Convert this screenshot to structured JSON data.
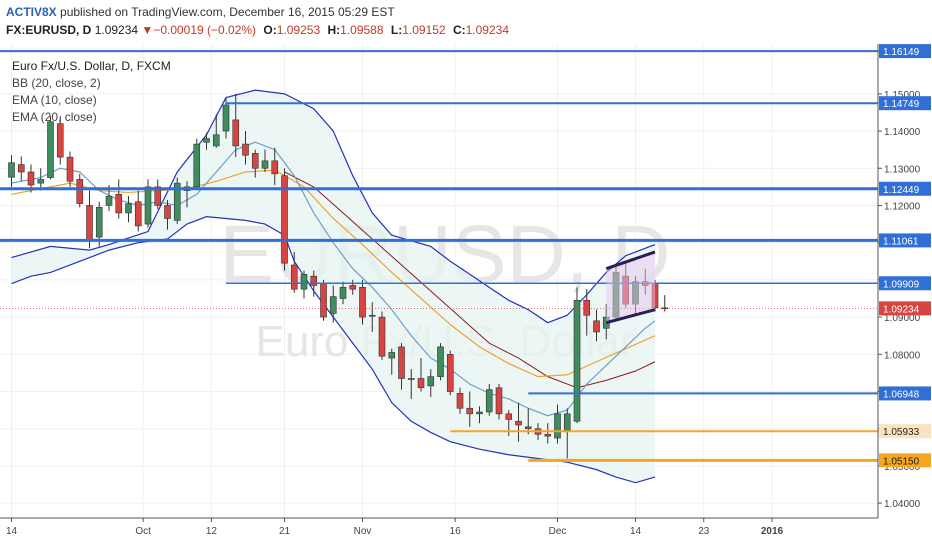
{
  "header": {
    "user": "ACTIV8X",
    "published": "published on TradingView.com, December 16, 2015 05:29 EST",
    "symbol": "FX:EURUSD, D",
    "last": "1.09234",
    "change": "−0.00019 (−0.02%)",
    "o_label": "O:",
    "o": "1.09253",
    "h_label": "H:",
    "h": "1.09588",
    "l_label": "L:",
    "l": "1.09152",
    "c_label": "C:",
    "c": "1.09234"
  },
  "legend": {
    "title": "Euro Fx/U.S. Dollar, D, FXCM",
    "bb": "BB (20, close, 2)",
    "ema10": "EMA (10, close)",
    "ema20": "EMA (20, close)"
  },
  "watermark": {
    "symbol": "EURUSD, D",
    "name": "Euro Fx/U.S. Dollar"
  },
  "colors": {
    "up": "#3f8d5e",
    "down": "#d64541",
    "bb": "#2233bb",
    "bb_fill": "#e6f4f1",
    "ema10": "#6f9fc9",
    "ema20": "#f0a030",
    "ema_slow": "#8b1a1a",
    "hline": "#2f6fd6",
    "support": "#f5a623",
    "channel": "#2a1f55"
  },
  "chart_data": {
    "type": "candlestick",
    "ylim": [
      1.036,
      1.1634
    ],
    "yticks": [
      "1.16149",
      "1.15000",
      "1.14000",
      "1.13000",
      "1.12000",
      "1.11000",
      "1.10000",
      "1.09000",
      "1.08000",
      "1.07000",
      "1.06000",
      "1.05000",
      "1.04000"
    ],
    "xticks": [
      "14",
      "Oct",
      "12",
      "21",
      "Nov",
      "16",
      "Dec",
      "14",
      "23",
      "2016"
    ],
    "candles": [
      [
        1.1276,
        1.1335,
        1.125,
        1.1315
      ],
      [
        1.131,
        1.1332,
        1.1265,
        1.129
      ],
      [
        1.129,
        1.131,
        1.1235,
        1.1255
      ],
      [
        1.126,
        1.13,
        1.124,
        1.127
      ],
      [
        1.1275,
        1.144,
        1.127,
        1.1425
      ],
      [
        1.142,
        1.144,
        1.131,
        1.133
      ],
      [
        1.133,
        1.1345,
        1.125,
        1.1265
      ],
      [
        1.127,
        1.1285,
        1.1195,
        1.1205
      ],
      [
        1.12,
        1.124,
        1.1085,
        1.1105
      ],
      [
        1.1115,
        1.121,
        1.109,
        1.1195
      ],
      [
        1.12,
        1.1255,
        1.1185,
        1.1225
      ],
      [
        1.123,
        1.127,
        1.1165,
        1.118
      ],
      [
        1.118,
        1.1225,
        1.1155,
        1.1205
      ],
      [
        1.121,
        1.124,
        1.113,
        1.1145
      ],
      [
        1.115,
        1.127,
        1.114,
        1.125
      ],
      [
        1.125,
        1.127,
        1.119,
        1.12
      ],
      [
        1.12,
        1.1215,
        1.1135,
        1.1165
      ],
      [
        1.116,
        1.1275,
        1.115,
        1.126
      ],
      [
        1.124,
        1.1265,
        1.1195,
        1.125
      ],
      [
        1.125,
        1.138,
        1.1245,
        1.1365
      ],
      [
        1.137,
        1.1395,
        1.135,
        1.138
      ],
      [
        1.136,
        1.1445,
        1.1355,
        1.139
      ],
      [
        1.14,
        1.149,
        1.138,
        1.147
      ],
      [
        1.143,
        1.15,
        1.133,
        1.136
      ],
      [
        1.1365,
        1.14,
        1.131,
        1.1335
      ],
      [
        1.134,
        1.135,
        1.1275,
        1.13
      ],
      [
        1.13,
        1.135,
        1.129,
        1.132
      ],
      [
        1.132,
        1.1355,
        1.1255,
        1.1285
      ],
      [
        1.128,
        1.13,
        1.1025,
        1.1045
      ],
      [
        1.104,
        1.1075,
        1.0965,
        1.0975
      ],
      [
        1.0975,
        1.1025,
        1.095,
        1.1015
      ],
      [
        1.101,
        1.1025,
        1.0955,
        1.0985
      ],
      [
        1.099,
        1.1,
        1.089,
        1.09
      ],
      [
        1.091,
        1.0985,
        1.0885,
        1.0955
      ],
      [
        1.095,
        1.0995,
        1.0935,
        1.098
      ],
      [
        1.0985,
        1.1,
        1.096,
        1.0975
      ],
      [
        1.098,
        1.1,
        1.088,
        1.09
      ],
      [
        1.0905,
        1.094,
        1.086,
        1.0905
      ],
      [
        1.09,
        1.0915,
        1.0785,
        1.0795
      ],
      [
        1.079,
        1.0815,
        1.0745,
        1.0805
      ],
      [
        1.082,
        1.083,
        1.0705,
        1.0735
      ],
      [
        1.0735,
        1.076,
        1.068,
        1.0735
      ],
      [
        1.0735,
        1.079,
        1.07,
        1.071
      ],
      [
        1.0715,
        1.076,
        1.0685,
        1.074
      ],
      [
        1.074,
        1.083,
        1.073,
        1.082
      ],
      [
        1.08,
        1.081,
        1.069,
        1.07
      ],
      [
        1.0695,
        1.071,
        1.064,
        1.0655
      ],
      [
        1.0655,
        1.07,
        1.0605,
        1.064
      ],
      [
        1.064,
        1.066,
        1.0615,
        1.0645
      ],
      [
        1.0645,
        1.072,
        1.0635,
        1.0705
      ],
      [
        1.071,
        1.072,
        1.0625,
        1.064
      ],
      [
        1.064,
        1.065,
        1.058,
        1.0625
      ],
      [
        1.062,
        1.067,
        1.0565,
        1.061
      ],
      [
        1.0605,
        1.0655,
        1.0585,
        1.06
      ],
      [
        1.06,
        1.0615,
        1.057,
        1.0585
      ],
      [
        1.0585,
        1.0615,
        1.056,
        1.058
      ],
      [
        1.0575,
        1.0665,
        1.056,
        1.064
      ],
      [
        1.0595,
        1.0655,
        1.052,
        1.064
      ],
      [
        1.062,
        1.098,
        1.0615,
        1.0945
      ],
      [
        1.0945,
        1.0975,
        1.085,
        1.0905
      ],
      [
        1.089,
        1.092,
        1.0835,
        1.086
      ],
      [
        1.087,
        1.0935,
        1.084,
        1.09
      ],
      [
        1.09,
        1.104,
        1.0895,
        1.102
      ],
      [
        1.101,
        1.1045,
        1.0925,
        1.0935
      ],
      [
        1.0935,
        1.101,
        1.0905,
        1.0995
      ],
      [
        1.0995,
        1.103,
        1.096,
        1.0985
      ],
      [
        1.099,
        1.1,
        1.0915,
        1.0925
      ],
      [
        1.0925,
        1.0959,
        1.0915,
        1.0923
      ]
    ],
    "bb_upper": [
      [
        0,
        1.106
      ],
      [
        4,
        1.109
      ],
      [
        8,
        1.108
      ],
      [
        10,
        1.1095
      ],
      [
        14,
        1.113
      ],
      [
        17,
        1.129
      ],
      [
        20,
        1.139
      ],
      [
        22,
        1.149
      ],
      [
        25,
        1.151
      ],
      [
        28,
        1.15
      ],
      [
        31,
        1.146
      ],
      [
        33,
        1.14
      ],
      [
        35,
        1.128
      ],
      [
        37,
        1.118
      ],
      [
        39,
        1.112
      ],
      [
        41,
        1.1105
      ],
      [
        43,
        1.109
      ],
      [
        45,
        1.105
      ],
      [
        47,
        1.1015
      ],
      [
        49,
        1.098
      ],
      [
        51,
        1.0945
      ],
      [
        53,
        1.092
      ],
      [
        55,
        1.0885
      ],
      [
        57,
        1.0905
      ],
      [
        59,
        1.096
      ],
      [
        61,
        1.102
      ],
      [
        63,
        1.1065
      ],
      [
        66,
        1.1095
      ]
    ],
    "bb_lower": [
      [
        0,
        1.099
      ],
      [
        2,
        1.101
      ],
      [
        4,
        1.102
      ],
      [
        7,
        1.105
      ],
      [
        10,
        1.108
      ],
      [
        13,
        1.11
      ],
      [
        16,
        1.111
      ],
      [
        18,
        1.115
      ],
      [
        20,
        1.117
      ],
      [
        22,
        1.1165
      ],
      [
        24,
        1.116
      ],
      [
        26,
        1.115
      ],
      [
        28,
        1.112
      ],
      [
        29,
        1.105
      ],
      [
        31,
        1.097
      ],
      [
        33,
        1.09
      ],
      [
        35,
        1.083
      ],
      [
        37,
        1.076
      ],
      [
        39,
        1.067
      ],
      [
        41,
        1.062
      ],
      [
        43,
        1.059
      ],
      [
        45,
        1.0565
      ],
      [
        48,
        1.0545
      ],
      [
        51,
        1.053
      ],
      [
        54,
        1.052
      ],
      [
        57,
        1.051
      ],
      [
        60,
        1.049
      ],
      [
        62,
        1.047
      ],
      [
        64,
        1.0455
      ],
      [
        66,
        1.047
      ]
    ],
    "ema10": [
      [
        0,
        1.126
      ],
      [
        3,
        1.1275
      ],
      [
        5,
        1.13
      ],
      [
        7,
        1.129
      ],
      [
        9,
        1.124
      ],
      [
        11,
        1.1215
      ],
      [
        13,
        1.12
      ],
      [
        15,
        1.121
      ],
      [
        17,
        1.12
      ],
      [
        19,
        1.123
      ],
      [
        21,
        1.129
      ],
      [
        23,
        1.135
      ],
      [
        25,
        1.137
      ],
      [
        27,
        1.135
      ],
      [
        29,
        1.128
      ],
      [
        31,
        1.118
      ],
      [
        33,
        1.11
      ],
      [
        35,
        1.103
      ],
      [
        37,
        1.098
      ],
      [
        39,
        1.092
      ],
      [
        41,
        1.085
      ],
      [
        43,
        1.079
      ],
      [
        45,
        1.076
      ],
      [
        47,
        1.072
      ],
      [
        49,
        1.0695
      ],
      [
        51,
        1.068
      ],
      [
        53,
        1.0655
      ],
      [
        55,
        1.0635
      ],
      [
        57,
        1.065
      ],
      [
        59,
        1.072
      ],
      [
        61,
        1.077
      ],
      [
        63,
        1.082
      ],
      [
        65,
        1.087
      ],
      [
        66,
        1.089
      ]
    ],
    "ema20": [
      [
        0,
        1.123
      ],
      [
        3,
        1.1245
      ],
      [
        6,
        1.126
      ],
      [
        9,
        1.124
      ],
      [
        12,
        1.1235
      ],
      [
        15,
        1.124
      ],
      [
        18,
        1.1245
      ],
      [
        21,
        1.1265
      ],
      [
        24,
        1.129
      ],
      [
        27,
        1.1295
      ],
      [
        30,
        1.125
      ],
      [
        33,
        1.1165
      ],
      [
        36,
        1.1095
      ],
      [
        39,
        1.102
      ],
      [
        42,
        1.095
      ],
      [
        45,
        1.088
      ],
      [
        48,
        1.082
      ],
      [
        51,
        1.0775
      ],
      [
        54,
        1.074
      ],
      [
        57,
        1.0745
      ],
      [
        60,
        1.078
      ],
      [
        63,
        1.0815
      ],
      [
        66,
        1.085
      ]
    ],
    "ema_slow": [
      [
        28,
        1.129
      ],
      [
        31,
        1.125
      ],
      [
        34,
        1.118
      ],
      [
        37,
        1.111
      ],
      [
        40,
        1.104
      ],
      [
        43,
        1.097
      ],
      [
        46,
        1.09
      ],
      [
        49,
        1.083
      ],
      [
        52,
        1.079
      ],
      [
        55,
        1.074
      ],
      [
        58,
        1.071
      ],
      [
        61,
        1.073
      ],
      [
        64,
        1.0755
      ],
      [
        66,
        1.078
      ]
    ],
    "hlines": [
      {
        "price": 1.16149,
        "x0": 0,
        "color": "#2f6fd6",
        "w": 2
      },
      {
        "price": 1.14749,
        "x0": 22,
        "color": "#2f6fd6",
        "w": 2
      },
      {
        "price": 1.12449,
        "x0": 0,
        "color": "#2f6fd6",
        "w": 3
      },
      {
        "price": 1.11061,
        "x0": 0,
        "color": "#2f6fd6",
        "w": 3
      },
      {
        "price": 1.09909,
        "x0": 22,
        "color": "#2f6fd6",
        "w": 1.5
      },
      {
        "price": 1.06948,
        "x0": 53,
        "color": "#2f6fd6",
        "w": 2
      },
      {
        "price": 1.05933,
        "x0": 45,
        "color": "#f5a623",
        "w": 2
      },
      {
        "price": 1.0515,
        "x0": 53,
        "color": "#f5a623",
        "w": 3
      }
    ],
    "price_labels": [
      {
        "price": 1.16149,
        "text": "1.16149",
        "style": "line"
      },
      {
        "price": 1.14749,
        "text": "1.14749",
        "style": "line"
      },
      {
        "price": 1.12449,
        "text": "1.12449",
        "style": "line"
      },
      {
        "price": 1.11061,
        "text": "1.11061",
        "style": "line"
      },
      {
        "price": 1.09909,
        "text": "1.09909",
        "style": "line"
      },
      {
        "price": 1.09234,
        "text": "1.09234",
        "style": "last"
      },
      {
        "price": 1.06948,
        "text": "1.06948",
        "style": "line"
      },
      {
        "price": 1.05933,
        "text": "1.05933",
        "style": "support"
      },
      {
        "price": 1.0515,
        "text": "1.05150",
        "style": "support2"
      }
    ],
    "last_price": 1.09234,
    "channel": {
      "top": [
        [
          61,
          1.103
        ],
        [
          66,
          1.1075
        ]
      ],
      "bottom": [
        [
          61,
          1.0885
        ],
        [
          66,
          1.092
        ]
      ]
    }
  }
}
